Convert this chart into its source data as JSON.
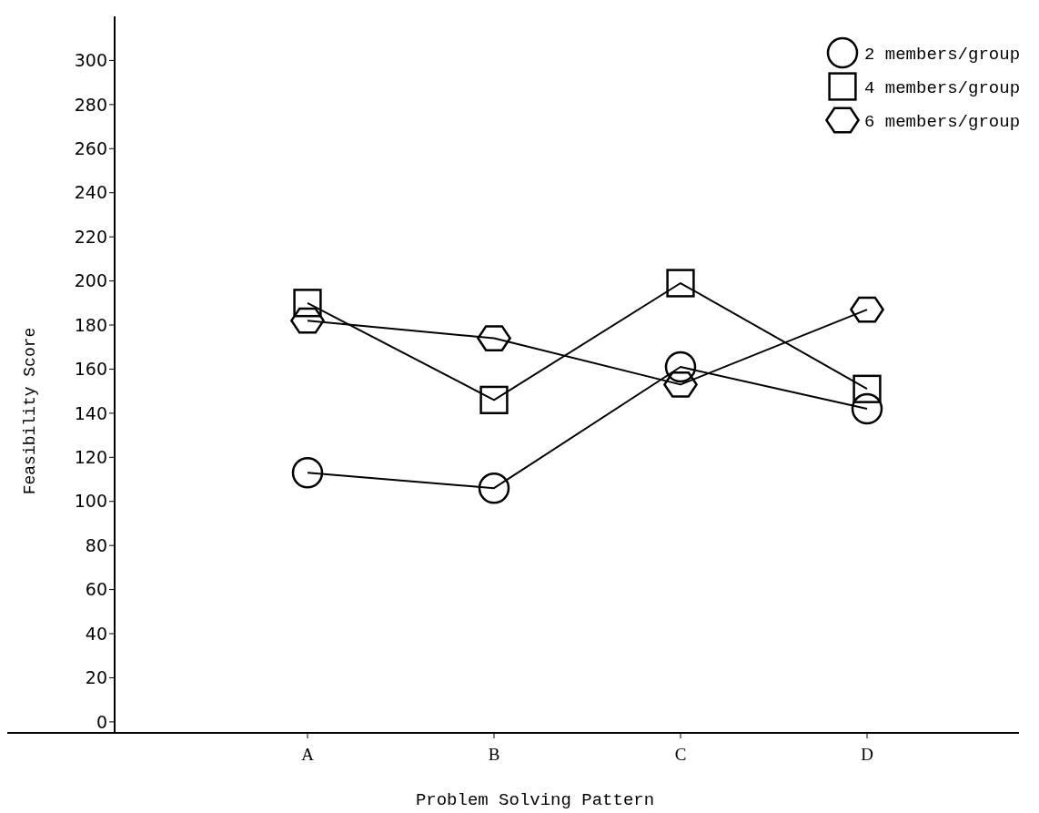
{
  "chart_data": {
    "type": "line",
    "xlabel": "Problem Solving Pattern",
    "ylabel": "Feasibility Score",
    "categories": [
      "A",
      "B",
      "C",
      "D"
    ],
    "series": [
      {
        "name": "2 members/group",
        "color": "#000000",
        "marker": "circle",
        "values": [
          113,
          106,
          161,
          142
        ]
      },
      {
        "name": "4 members/group",
        "color": "#000000",
        "marker": "square",
        "values": [
          190,
          146,
          199,
          151
        ]
      },
      {
        "name": "6 members/group",
        "color": "#000000",
        "marker": "diamond",
        "values": [
          182,
          174,
          153,
          187
        ]
      }
    ],
    "ylim": [
      -5,
      320
    ],
    "yticks": [
      0,
      20,
      40,
      60,
      80,
      100,
      120,
      140,
      160,
      180,
      200,
      220,
      240,
      260,
      280,
      300
    ],
    "grid": false,
    "legend": "top right",
    "line_style": "solid"
  }
}
